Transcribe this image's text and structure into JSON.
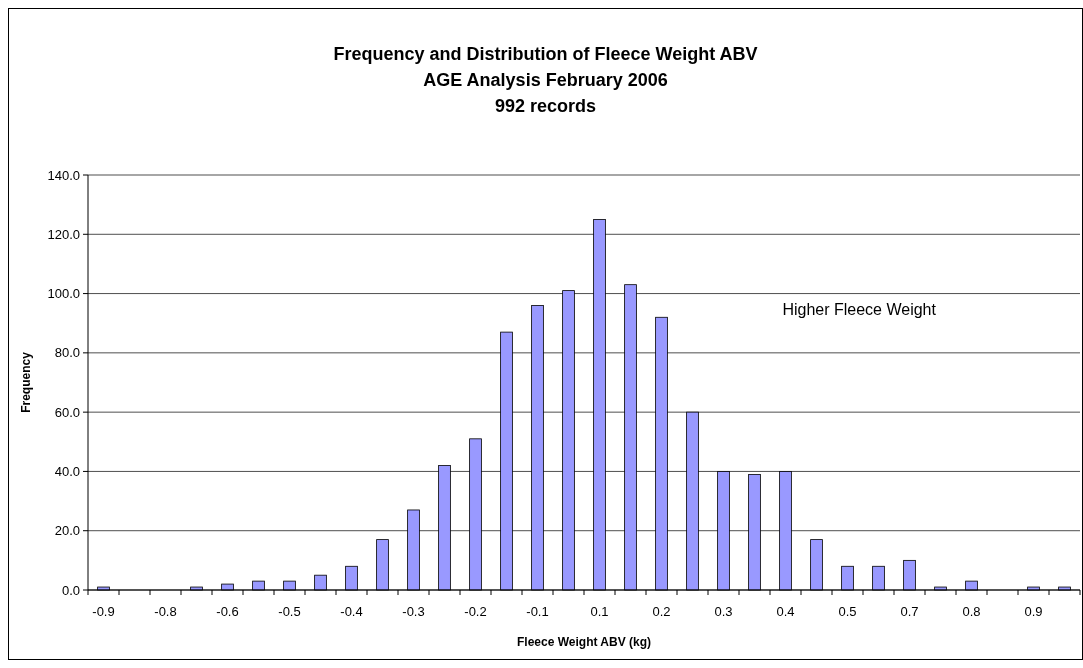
{
  "chart_data": {
    "type": "bar",
    "title": "Frequency and Distribution of Fleece Weight ABV",
    "subtitle": "AGE Analysis February 2006\n992 records",
    "xlabel": "Fleece Weight ABV (kg)",
    "ylabel": "Frequency",
    "categories": [
      "-0.9",
      null,
      "-0.8",
      null,
      "-0.6",
      null,
      "-0.5",
      null,
      "-0.4",
      null,
      "-0.3",
      null,
      "-0.2",
      null,
      "-0.1",
      null,
      "0.1",
      null,
      "0.2",
      null,
      "0.3",
      null,
      "0.4",
      null,
      "0.5",
      null,
      "0.7",
      null,
      "0.8",
      null,
      "0.9",
      null
    ],
    "values": [
      1,
      0,
      0,
      1,
      2,
      3,
      3,
      5,
      8,
      17,
      27,
      42,
      51,
      87,
      96,
      101,
      125,
      103,
      92,
      60,
      40,
      39,
      40,
      17,
      8,
      8,
      10,
      1,
      3,
      0,
      1,
      1
    ],
    "color": "#9999ff",
    "ylim": [
      0,
      140
    ],
    "yticks": [
      {
        "value": 0,
        "label": "0.0"
      },
      {
        "value": 20,
        "label": "20.0"
      },
      {
        "value": 40,
        "label": "40.0"
      },
      {
        "value": 60,
        "label": "60.0"
      },
      {
        "value": 80,
        "label": "80.0"
      },
      {
        "value": 100,
        "label": "100.0"
      },
      {
        "value": 120,
        "label": "120.0"
      },
      {
        "value": 140,
        "label": "140.0"
      }
    ],
    "grid": "y",
    "annotations": [
      "Higher Fleece Weight"
    ]
  }
}
